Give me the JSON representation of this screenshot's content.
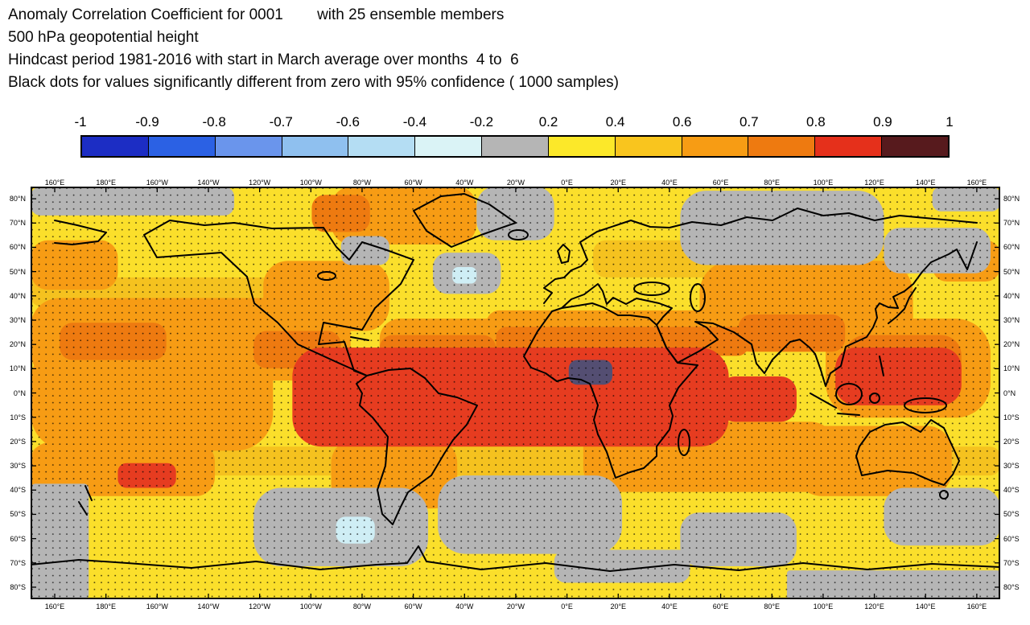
{
  "header": {
    "line1": "Anomaly Correlation Coefficient for 0001        with 25 ensemble members",
    "line2": "500 hPa geopotential height",
    "line3": "Hindcast period 1981-2016 with start in March average over months  4 to  6",
    "line4": "Black dots for values significantly different from zero with 95% confidence ( 1000 samples)"
  },
  "chart_data": {
    "type": "heatmap",
    "title": "Anomaly Correlation Coefficient for 0001 with 25 ensemble members",
    "variable": "500 hPa geopotential height",
    "period": "Hindcast period 1981-2016, start in March, average over months 4 to 6",
    "significance": "Black dots where values significantly different from zero with 95% confidence (1000 samples)",
    "projection": "global cylindrical lat-lon map, longitude from 160°E eastward around the globe to 160°E, latitude 85°N to 85°S",
    "colorbar": {
      "boundaries": [
        -1,
        -0.9,
        -0.8,
        -0.7,
        -0.6,
        -0.4,
        -0.2,
        0.2,
        0.4,
        0.6,
        0.7,
        0.8,
        0.9,
        1
      ],
      "labels": [
        "-1",
        "-0.9",
        "-0.8",
        "-0.7",
        "-0.6",
        "-0.4",
        "-0.2",
        "0.2",
        "0.4",
        "0.6",
        "0.7",
        "0.8",
        "0.9",
        "1"
      ],
      "segments": [
        {
          "range": "-1 to -0.9",
          "color": "#1c2dc4"
        },
        {
          "range": "-0.9 to -0.8",
          "color": "#2b61e4"
        },
        {
          "range": "-0.8 to -0.7",
          "color": "#6a95ec"
        },
        {
          "range": "-0.7 to -0.6",
          "color": "#8fc0ef"
        },
        {
          "range": "-0.6 to -0.4",
          "color": "#b4ddf3"
        },
        {
          "range": "-0.4 to -0.2",
          "color": "#daf3f6"
        },
        {
          "range": "-0.2 to 0.2",
          "color": "#b5b5b5"
        },
        {
          "range": "0.2 to 0.4",
          "color": "#fce829"
        },
        {
          "range": "0.4 to 0.6",
          "color": "#f9c51e"
        },
        {
          "range": "0.6 to 0.7",
          "color": "#f79c14"
        },
        {
          "range": "0.7 to 0.8",
          "color": "#ee7a10"
        },
        {
          "range": "0.8 to 0.9",
          "color": "#e5301b"
        },
        {
          "range": "0.9 to 1",
          "color": "#571a1d"
        }
      ]
    },
    "axes": {
      "lon_labels": [
        "160°E",
        "180°E",
        "160°W",
        "140°W",
        "120°W",
        "100°W",
        "80°W",
        "60°W",
        "40°W",
        "20°W",
        "0°E",
        "20°E",
        "40°E",
        "60°E",
        "80°E",
        "100°E",
        "120°E",
        "140°E",
        "160°E"
      ],
      "lat_labels": [
        "80°N",
        "70°N",
        "60°N",
        "50°N",
        "40°N",
        "30°N",
        "20°N",
        "10°N",
        "0°N",
        "10°S",
        "20°S",
        "30°S",
        "40°S",
        "50°S",
        "60°S",
        "70°S",
        "80°S"
      ]
    },
    "field": {
      "description": "Gridded ACC field: high positive (red, 0.8-0.9) band across the tropics; orange (0.6-0.8) subtropics; yellow (0.2-0.6) mid-latitudes; gray (near zero) over parts of the northern Europe/Russia, North Pacific and southern oceans; small negative pale-blue patches in the North Atlantic and Southeast Pacific; one very dark patch over central Africa.",
      "base_color": "#fbdf2b",
      "palette": {
        "gold": "#f5c21f",
        "orange": "#f79c14",
        "dark_orange": "#ee7a10",
        "red": "#e63c20",
        "dark": "#544e72",
        "gray": "#b5b5b5",
        "pale_blue": "#cfeef5"
      },
      "level_meaning": {
        "yellow": "0.2 to 0.6",
        "gold": "0.4 to 0.6",
        "orange": "0.6 to 0.7",
        "dark_orange": "0.7 to 0.8",
        "red": "0.8 to 0.9",
        "dark": "0.9 to 1 (dark core over central Africa)",
        "gray": "-0.2 to 0.2",
        "pale_blue": "-0.4 to -0.2"
      },
      "patches": [
        {
          "c": "gold",
          "x": 0,
          "y": 22,
          "w": 36,
          "h": 7
        },
        {
          "c": "gold",
          "x": 58,
          "y": 13,
          "w": 33,
          "h": 9
        },
        {
          "c": "gold",
          "x": 0,
          "y": 63,
          "w": 100,
          "h": 7
        },
        {
          "c": "orange",
          "x": 0,
          "y": 27,
          "w": 33,
          "h": 20
        },
        {
          "c": "orange",
          "x": 31,
          "y": 0,
          "w": 15,
          "h": 14
        },
        {
          "c": "orange",
          "x": 24,
          "y": 18,
          "w": 13,
          "h": 17
        },
        {
          "c": "orange",
          "x": 36,
          "y": 32,
          "w": 16,
          "h": 14
        },
        {
          "c": "orange",
          "x": 47,
          "y": 30,
          "w": 30,
          "h": 9
        },
        {
          "c": "orange",
          "x": 69,
          "y": 18,
          "w": 22,
          "h": 22
        },
        {
          "c": "orange",
          "x": 82,
          "y": 32,
          "w": 17,
          "h": 24
        },
        {
          "c": "orange",
          "x": 0,
          "y": 38,
          "w": 25,
          "h": 26
        },
        {
          "c": "orange",
          "x": 0,
          "y": 62,
          "w": 19,
          "h": 13
        },
        {
          "c": "orange",
          "x": 31,
          "y": 61,
          "w": 13,
          "h": 17
        },
        {
          "c": "orange",
          "x": 57,
          "y": 57,
          "w": 26,
          "h": 17
        },
        {
          "c": "orange",
          "x": 79,
          "y": 58,
          "w": 16,
          "h": 17
        },
        {
          "c": "orange",
          "x": 93,
          "y": 13,
          "w": 7,
          "h": 10
        },
        {
          "c": "orange",
          "x": 0,
          "y": 13,
          "w": 9,
          "h": 12
        },
        {
          "c": "dark_orange",
          "x": 29,
          "y": 2,
          "w": 6,
          "h": 9
        },
        {
          "c": "dark_orange",
          "x": 48,
          "y": 34,
          "w": 26,
          "h": 7
        },
        {
          "c": "dark_orange",
          "x": 73,
          "y": 31,
          "w": 11,
          "h": 9
        },
        {
          "c": "dark_orange",
          "x": 3,
          "y": 33,
          "w": 11,
          "h": 9
        },
        {
          "c": "dark_orange",
          "x": 23,
          "y": 35,
          "w": 9,
          "h": 9
        },
        {
          "c": "dark_orange",
          "x": 84,
          "y": 36,
          "w": 12,
          "h": 14
        },
        {
          "c": "dark_orange",
          "x": 36,
          "y": 36,
          "w": 12,
          "h": 9
        },
        {
          "c": "red",
          "x": 27,
          "y": 39,
          "w": 45,
          "h": 24,
          "rx": 36
        },
        {
          "c": "red",
          "x": 83,
          "y": 39,
          "w": 13,
          "h": 14
        },
        {
          "c": "red",
          "x": 71,
          "y": 46,
          "w": 8,
          "h": 11
        },
        {
          "c": "red",
          "x": 9,
          "y": 67,
          "w": 6,
          "h": 6
        },
        {
          "c": "dark",
          "x": 55.5,
          "y": 42,
          "w": 4.5,
          "h": 6
        },
        {
          "c": "gray",
          "x": 0,
          "y": 0,
          "w": 21,
          "h": 7
        },
        {
          "c": "gray",
          "x": 46,
          "y": 0,
          "w": 8,
          "h": 13
        },
        {
          "c": "gray",
          "x": 67,
          "y": 1,
          "w": 21,
          "h": 18
        },
        {
          "c": "gray",
          "x": 93,
          "y": 0,
          "w": 7,
          "h": 6
        },
        {
          "c": "gray",
          "x": 88,
          "y": 10,
          "w": 11,
          "h": 11
        },
        {
          "c": "gray",
          "x": 41.5,
          "y": 16,
          "w": 7,
          "h": 10
        },
        {
          "c": "gray",
          "x": 32,
          "y": 12,
          "w": 5,
          "h": 7
        },
        {
          "c": "gray",
          "x": 0,
          "y": 72,
          "w": 6,
          "h": 28,
          "rx": 6
        },
        {
          "c": "gray",
          "x": 23,
          "y": 73,
          "w": 18,
          "h": 19
        },
        {
          "c": "gray",
          "x": 42,
          "y": 70,
          "w": 19,
          "h": 19
        },
        {
          "c": "gray",
          "x": 67,
          "y": 79,
          "w": 12,
          "h": 13
        },
        {
          "c": "gray",
          "x": 88,
          "y": 73,
          "w": 12,
          "h": 14
        },
        {
          "c": "gray",
          "x": 54,
          "y": 88,
          "w": 14,
          "h": 8
        },
        {
          "c": "gray",
          "x": 78,
          "y": 93,
          "w": 22,
          "h": 7,
          "rx": 4
        },
        {
          "c": "pale_blue",
          "x": 43.5,
          "y": 19.5,
          "w": 2.5,
          "h": 4
        },
        {
          "c": "pale_blue",
          "x": 31.5,
          "y": 80,
          "w": 4,
          "h": 6.5
        }
      ]
    },
    "stippling": "regular grid of small black dots over most of the map indicating 95% significance"
  }
}
